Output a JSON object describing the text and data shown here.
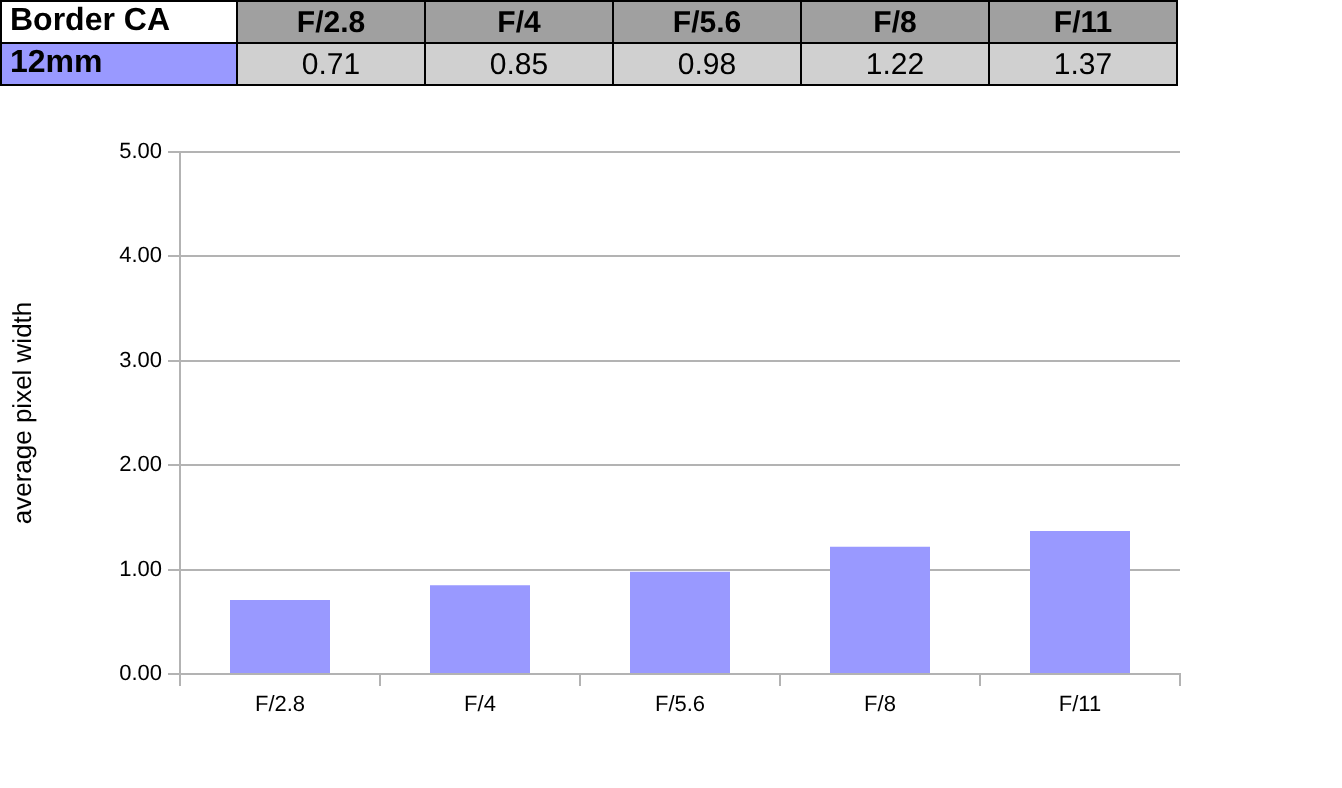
{
  "chart_data": {
    "type": "bar",
    "title": "Border CA",
    "ylabel": "average pixel width",
    "categories": [
      "F/2.8",
      "F/4",
      "F/5.6",
      "F/8",
      "F/11"
    ],
    "series": [
      {
        "name": "12mm",
        "color": "#9999ff",
        "values": [
          0.71,
          0.85,
          0.98,
          1.22,
          1.37
        ]
      }
    ],
    "ylim": [
      0,
      5
    ],
    "yticks": [
      {
        "value": 0,
        "label": "0.00"
      },
      {
        "value": 1,
        "label": "1.00"
      },
      {
        "value": 2,
        "label": "2.00"
      },
      {
        "value": 3,
        "label": "3.00"
      },
      {
        "value": 4,
        "label": "4.00"
      },
      {
        "value": 5,
        "label": "5.00"
      }
    ],
    "grid": "y",
    "legend": "top",
    "data_labels": true
  }
}
